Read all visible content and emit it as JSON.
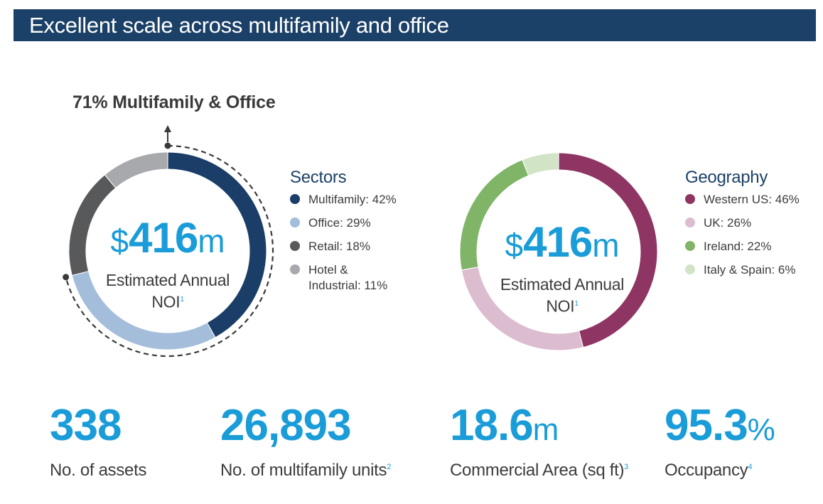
{
  "header": {
    "title": "Excellent scale across multifamily and office"
  },
  "callout": {
    "label": "71% Multifamily & Office"
  },
  "colors": {
    "header_bg": "#1c4168",
    "accent_blue": "#1a9cd8"
  },
  "chart_data": [
    {
      "type": "pie",
      "title": "",
      "legend_title": "Sectors",
      "center": {
        "currency": "$",
        "value": "416",
        "suffix": "m",
        "label_line1": "Estimated Annual",
        "label_line2": "NOI",
        "footnote": "1"
      },
      "slices": [
        {
          "name": "Multifamily",
          "value": 42,
          "label": "Multifamily: 42%",
          "color": "#1b3e68"
        },
        {
          "name": "Office",
          "value": 29,
          "label": "Office: 29%",
          "color": "#a4bddb"
        },
        {
          "name": "Retail",
          "value": 18,
          "label": "Retail: 18%",
          "color": "#58595b"
        },
        {
          "name": "Hotel & Industrial",
          "value": 11,
          "label_line1": "Hotel &",
          "label_line2": "Industrial: 11%",
          "color": "#a7a9ac"
        }
      ]
    },
    {
      "type": "pie",
      "title": "",
      "legend_title": "Geography",
      "center": {
        "currency": "$",
        "value": "416",
        "suffix": "m",
        "label_line1": "Estimated Annual",
        "label_line2": "NOI",
        "footnote": "1"
      },
      "slices": [
        {
          "name": "Western US",
          "value": 46,
          "label": "Western US: 46%",
          "color": "#8f3564"
        },
        {
          "name": "UK",
          "value": 26,
          "label": "UK: 26%",
          "color": "#dcbdd0"
        },
        {
          "name": "Ireland",
          "value": 22,
          "label": "Ireland: 22%",
          "color": "#80b567"
        },
        {
          "name": "Italy & Spain",
          "value": 6,
          "label": "Italy & Spain: 6%",
          "color": "#d2e4c6"
        }
      ]
    }
  ],
  "stats": [
    {
      "value": "338",
      "suffix": "",
      "label": "No. of assets",
      "footnote": ""
    },
    {
      "value": "26,893",
      "suffix": "",
      "label": "No. of multifamily units",
      "footnote": "2"
    },
    {
      "value": "18.6",
      "suffix": "m",
      "label": "Commercial Area (sq ft)",
      "footnote": "3"
    },
    {
      "value": "95.3",
      "suffix": "%",
      "label": "Occupancy",
      "footnote": "4"
    }
  ]
}
